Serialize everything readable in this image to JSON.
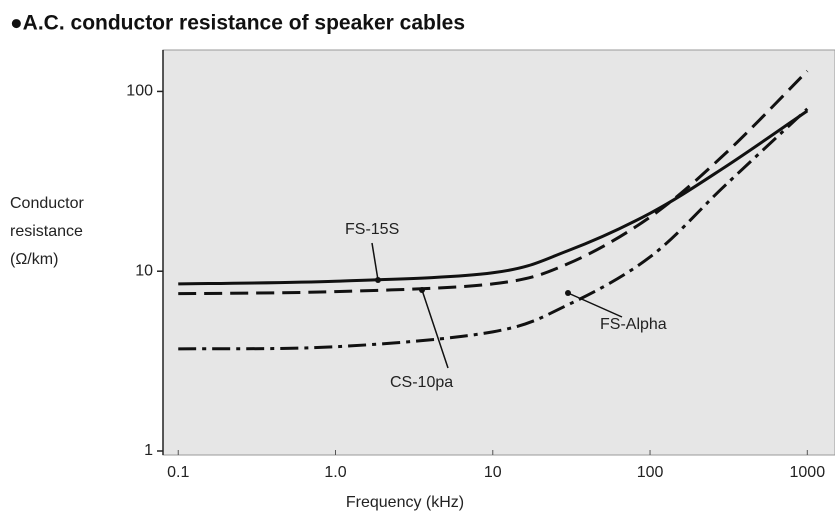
{
  "chart_data": {
    "type": "line",
    "title": "●A.C. conductor resistance of speaker cables",
    "x_label": "Frequency (kHz)",
    "y_label": [
      "Conductor",
      "resistance",
      "(Ω/km)"
    ],
    "x": [
      0.1,
      1,
      10,
      30,
      100,
      300,
      1000
    ],
    "series": [
      {
        "name": "FS-15S",
        "color": "#111111",
        "dash": "solid",
        "values": [
          8.5,
          8.8,
          9.8,
          13,
          21,
          38,
          78
        ]
      },
      {
        "name": "CS-10pa",
        "color": "#111111",
        "dash": "dashed",
        "values": [
          7.5,
          7.7,
          8.5,
          11,
          20,
          45,
          130
        ]
      },
      {
        "name": "FS-Alpha",
        "color": "#111111",
        "dash": "dashdot",
        "values": [
          3.7,
          3.8,
          4.6,
          6.5,
          12,
          30,
          80
        ]
      }
    ],
    "xscale": "log",
    "yscale": "log",
    "xlim": [
      0.08,
      1500
    ],
    "ylim": [
      0.95,
      170
    ],
    "xticks": [
      0.1,
      {
        "value": 1,
        "label": "1.0"
      },
      10,
      100,
      1000
    ],
    "yticks": [
      1,
      10,
      100
    ]
  }
}
